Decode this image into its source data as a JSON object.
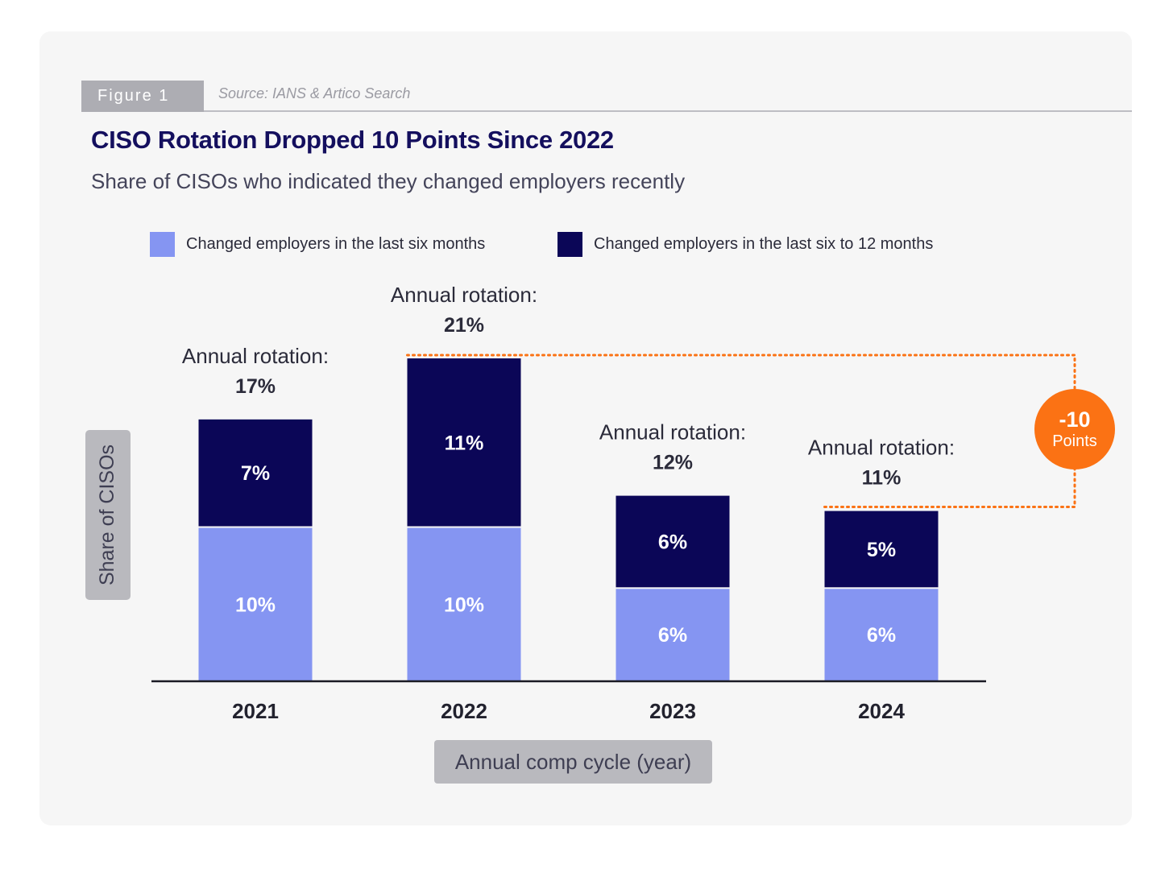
{
  "figure": {
    "tag": "Figure 1",
    "source": "Source: IANS & Artico Search"
  },
  "colors": {
    "six_months": "#8595f2",
    "six_to_twelve": "#0b0657",
    "accent": "#fb7214",
    "title": "#140f5e"
  },
  "chart_data": {
    "type": "bar",
    "stacked": true,
    "title": "CISO Rotation Dropped 10 Points Since 2022",
    "subtitle": "Share of CISOs who indicated they changed employers recently",
    "xlabel": "Annual comp cycle (year)",
    "ylabel": "Share of CISOs",
    "categories": [
      "2021",
      "2022",
      "2023",
      "2024"
    ],
    "series": [
      {
        "name": "Changed employers in the last six months",
        "values": [
          10,
          10,
          6,
          6
        ],
        "labels": [
          "10%",
          "10%",
          "6%",
          "6%"
        ]
      },
      {
        "name": "Changed employers in the last six to 12 months",
        "values": [
          7,
          11,
          6,
          5
        ],
        "labels": [
          "7%",
          "11%",
          "6%",
          "5%"
        ]
      }
    ],
    "annotations": [
      {
        "category": "2021",
        "label": "Annual rotation:",
        "value": "17%"
      },
      {
        "category": "2022",
        "label": "Annual rotation:",
        "value": "21%"
      },
      {
        "category": "2023",
        "label": "Annual rotation:",
        "value": "12%"
      },
      {
        "category": "2024",
        "label": "Annual rotation:",
        "value": "11%"
      }
    ],
    "change_callout": {
      "value": "-10",
      "unit": "Points",
      "from": "2022",
      "to": "2024"
    },
    "legend_position": "top",
    "grid": false
  }
}
